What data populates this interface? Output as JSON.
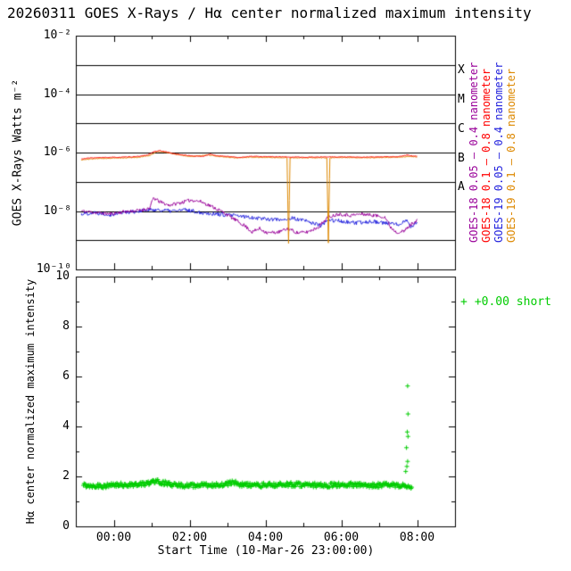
{
  "title": "20260311 GOES X-Rays / Hα center normalized maximum intensity",
  "axes": {
    "x_title": "Start Time (10-Mar-26 23:00:00)",
    "top_y_title": "GOES X-Rays Watts m⁻²",
    "bottom_y_title": "Hα center normalized maximum intensity"
  },
  "x_axis": {
    "range": [
      0,
      10
    ],
    "ticks": [
      {
        "t": 1,
        "label": "00:00"
      },
      {
        "t": 3,
        "label": "02:00"
      },
      {
        "t": 5,
        "label": "04:00"
      },
      {
        "t": 7,
        "label": "06:00"
      },
      {
        "t": 9,
        "label": "08:00"
      }
    ],
    "minor": [
      0,
      2,
      4,
      6,
      8,
      10
    ]
  },
  "right_legend": [
    {
      "label": "GOES-18 0.05 — 0.4 nanometer",
      "color": "#990099"
    },
    {
      "label": "GOES-18 0.1 — 0.8 nanometer",
      "color": "#ff0000"
    },
    {
      "label": "GOES-19 0.05 — 0.4 nanometer",
      "color": "#2222dd"
    },
    {
      "label": "GOES-19 0.1 — 0.8 nanometer",
      "color": "#dd8800"
    }
  ],
  "chart_data": [
    {
      "type": "line",
      "ylabel": "GOES X-Rays Watts m⁻²",
      "y_scale": "log10",
      "ylim_log10": [
        -10,
        -2
      ],
      "yticks": [
        {
          "log10": -2,
          "label": "10⁻²"
        },
        {
          "log10": -4,
          "label": "10⁻⁴"
        },
        {
          "log10": -6,
          "label": "10⁻⁶"
        },
        {
          "log10": -8,
          "label": "10⁻⁸"
        },
        {
          "log10": -10,
          "label": "10⁻¹⁰"
        }
      ],
      "grid_decades": [
        -3,
        -4,
        -5,
        -6,
        -7,
        -8,
        -9
      ],
      "flare_class_labels": [
        {
          "label": "X",
          "log10": -3.2
        },
        {
          "label": "M",
          "log10": -4.2
        },
        {
          "label": "C",
          "log10": -5.2
        },
        {
          "label": "B",
          "log10": -6.2
        },
        {
          "label": "A",
          "log10": -7.2
        }
      ],
      "series": [
        {
          "name": "GOES-18 0.05 — 0.4 nanometer",
          "color": "#990099",
          "noise": 0.06,
          "seed": 11,
          "anchors": [
            [
              0.15,
              -8.0
            ],
            [
              0.5,
              -8.05
            ],
            [
              0.9,
              -8.1
            ],
            [
              1.3,
              -8.02
            ],
            [
              1.7,
              -7.98
            ],
            [
              1.95,
              -7.9
            ],
            [
              2.05,
              -7.55
            ],
            [
              2.2,
              -7.68
            ],
            [
              2.45,
              -7.8
            ],
            [
              2.75,
              -7.72
            ],
            [
              3.05,
              -7.62
            ],
            [
              3.3,
              -7.68
            ],
            [
              3.6,
              -7.85
            ],
            [
              3.9,
              -8.05
            ],
            [
              4.2,
              -8.3
            ],
            [
              4.45,
              -8.5
            ],
            [
              4.65,
              -8.72
            ],
            [
              4.85,
              -8.6
            ],
            [
              5.05,
              -8.75
            ],
            [
              5.35,
              -8.72
            ],
            [
              5.6,
              -8.6
            ],
            [
              5.85,
              -8.75
            ],
            [
              6.1,
              -8.72
            ],
            [
              6.4,
              -8.55
            ],
            [
              6.65,
              -8.2
            ],
            [
              6.95,
              -8.1
            ],
            [
              7.25,
              -8.15
            ],
            [
              7.55,
              -8.1
            ],
            [
              7.85,
              -8.15
            ],
            [
              8.15,
              -8.2
            ],
            [
              8.3,
              -8.55
            ],
            [
              8.45,
              -8.72
            ],
            [
              8.65,
              -8.7
            ],
            [
              8.85,
              -8.45
            ],
            [
              9.0,
              -8.3
            ]
          ]
        },
        {
          "name": "GOES-18 0.1 — 0.8 nanometer",
          "color": "#ff0000",
          "noise": 0.012,
          "seed": 33,
          "anchors": [
            [
              0.15,
              -6.22
            ],
            [
              0.4,
              -6.18
            ],
            [
              0.8,
              -6.17
            ],
            [
              1.2,
              -6.16
            ],
            [
              1.6,
              -6.14
            ],
            [
              1.9,
              -6.08
            ],
            [
              2.05,
              -5.98
            ],
            [
              2.2,
              -5.93
            ],
            [
              2.35,
              -5.97
            ],
            [
              2.55,
              -6.03
            ],
            [
              2.8,
              -6.08
            ],
            [
              3.1,
              -6.12
            ],
            [
              3.35,
              -6.13
            ],
            [
              3.55,
              -6.05
            ],
            [
              3.7,
              -6.11
            ],
            [
              4.0,
              -6.13
            ],
            [
              4.3,
              -6.17
            ],
            [
              4.6,
              -6.13
            ],
            [
              5.0,
              -6.14
            ],
            [
              5.5,
              -6.15
            ],
            [
              6.0,
              -6.16
            ],
            [
              6.5,
              -6.15
            ],
            [
              7.0,
              -6.15
            ],
            [
              7.5,
              -6.16
            ],
            [
              8.0,
              -6.15
            ],
            [
              8.5,
              -6.14
            ],
            [
              8.75,
              -6.09
            ],
            [
              8.9,
              -6.12
            ],
            [
              9.0,
              -6.12
            ]
          ]
        },
        {
          "name": "GOES-19 0.05 — 0.4 nanometer",
          "color": "#2222dd",
          "noise": 0.07,
          "seed": 22,
          "anchors": [
            [
              0.15,
              -8.1
            ],
            [
              0.5,
              -8.05
            ],
            [
              0.9,
              -8.12
            ],
            [
              1.3,
              -8.04
            ],
            [
              1.7,
              -8.0
            ],
            [
              2.1,
              -7.95
            ],
            [
              2.5,
              -8.0
            ],
            [
              2.9,
              -7.96
            ],
            [
              3.3,
              -8.05
            ],
            [
              3.7,
              -8.1
            ],
            [
              4.1,
              -8.15
            ],
            [
              4.5,
              -8.2
            ],
            [
              4.9,
              -8.25
            ],
            [
              5.3,
              -8.3
            ],
            [
              5.7,
              -8.25
            ],
            [
              6.1,
              -8.35
            ],
            [
              6.45,
              -8.5
            ],
            [
              6.7,
              -8.3
            ],
            [
              7.0,
              -8.35
            ],
            [
              7.4,
              -8.42
            ],
            [
              7.8,
              -8.35
            ],
            [
              8.2,
              -8.42
            ],
            [
              8.5,
              -8.46
            ],
            [
              8.7,
              -8.3
            ],
            [
              8.85,
              -8.55
            ],
            [
              9.0,
              -8.35
            ]
          ]
        },
        {
          "name": "GOES-19 0.1 — 0.8 nanometer",
          "color": "#dd8800",
          "noise": 0.012,
          "seed": 44,
          "anchors": [
            [
              0.15,
              -6.25
            ],
            [
              0.5,
              -6.21
            ],
            [
              1.0,
              -6.19
            ],
            [
              1.6,
              -6.17
            ],
            [
              1.95,
              -6.1
            ],
            [
              2.15,
              -5.96
            ],
            [
              2.4,
              -6.0
            ],
            [
              2.65,
              -6.06
            ],
            [
              3.0,
              -6.14
            ],
            [
              3.5,
              -6.08
            ],
            [
              3.8,
              -6.14
            ],
            [
              4.2,
              -6.18
            ],
            [
              4.6,
              -6.16
            ],
            [
              5.0,
              -6.17
            ],
            [
              5.5,
              -6.18
            ],
            [
              5.57,
              -6.18
            ],
            [
              5.61,
              -9.1
            ],
            [
              5.65,
              -6.18
            ],
            [
              6.0,
              -6.18
            ],
            [
              6.5,
              -6.18
            ],
            [
              6.62,
              -6.18
            ],
            [
              6.66,
              -9.1
            ],
            [
              6.7,
              -6.18
            ],
            [
              7.0,
              -6.17
            ],
            [
              7.5,
              -6.18
            ],
            [
              8.0,
              -6.17
            ],
            [
              8.5,
              -6.16
            ],
            [
              8.8,
              -6.13
            ],
            [
              9.0,
              -6.15
            ]
          ]
        }
      ]
    },
    {
      "type": "scatter",
      "ylabel": "Hα center normalized maximum intensity",
      "ylim": [
        0,
        10
      ],
      "yticks": [
        0,
        2,
        4,
        6,
        8,
        10
      ],
      "yminor": [
        1,
        3,
        5,
        7,
        9
      ],
      "legend": {
        "marker": "+",
        "label": "+0.00 short"
      },
      "scatter": {
        "color": "#00cc00",
        "marker": "+",
        "seed": 55,
        "jitter": 0.09,
        "dt": 0.018,
        "t_range": [
          0.2,
          8.87
        ],
        "baseline_anchors": [
          [
            0.2,
            1.65
          ],
          [
            0.7,
            1.62
          ],
          [
            1.2,
            1.66
          ],
          [
            1.7,
            1.68
          ],
          [
            1.95,
            1.74
          ],
          [
            2.1,
            1.83
          ],
          [
            2.3,
            1.75
          ],
          [
            2.55,
            1.65
          ],
          [
            3.0,
            1.63
          ],
          [
            3.5,
            1.65
          ],
          [
            4.0,
            1.7
          ],
          [
            4.15,
            1.76
          ],
          [
            4.35,
            1.68
          ],
          [
            4.7,
            1.64
          ],
          [
            5.2,
            1.66
          ],
          [
            5.7,
            1.68
          ],
          [
            6.2,
            1.66
          ],
          [
            6.7,
            1.65
          ],
          [
            7.2,
            1.67
          ],
          [
            7.7,
            1.64
          ],
          [
            8.2,
            1.66
          ],
          [
            8.6,
            1.63
          ],
          [
            8.87,
            1.6
          ]
        ],
        "outliers": [
          [
            8.7,
            2.2
          ],
          [
            8.73,
            2.4
          ],
          [
            8.75,
            2.6
          ],
          [
            8.72,
            3.15
          ],
          [
            8.76,
            3.6
          ],
          [
            8.74,
            3.78
          ],
          [
            8.76,
            4.5
          ],
          [
            8.75,
            5.62
          ]
        ]
      }
    }
  ]
}
